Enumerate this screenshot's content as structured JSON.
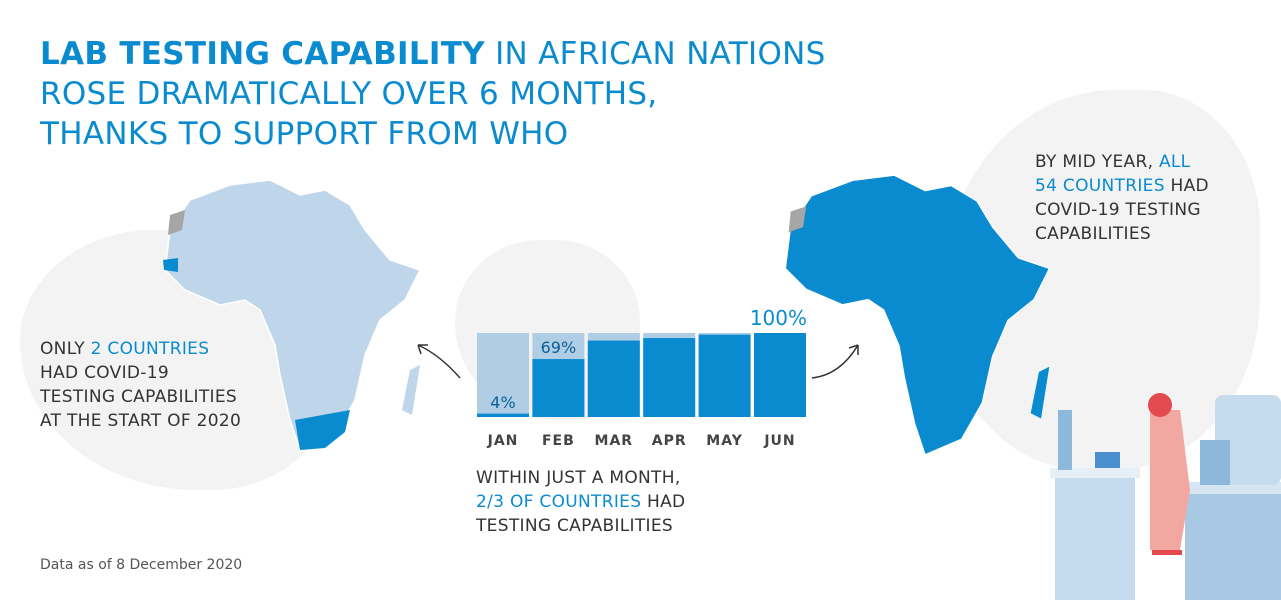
{
  "title": {
    "bold": "LAB TESTING CAPABILITY",
    "rest1": " IN AFRICAN NATIONS",
    "line2": "ROSE DRAMATICALLY OVER 6 MONTHS,",
    "line3": "THANKS TO SUPPORT FROM WHO"
  },
  "left_note": {
    "pre": "ONLY ",
    "hl": "2 COUNTRIES",
    "l2": "HAD COVID-19",
    "l3": "TESTING CAPABILITIES",
    "l4": "AT THE START OF 2020"
  },
  "right_note": {
    "pre": "BY MID YEAR, ",
    "hl1": "ALL",
    "hl2": "54 COUNTRIES",
    "post2": " HAD",
    "l3": "COVID-19 TESTING",
    "l4": "CAPABILITIES"
  },
  "bottom_note": {
    "l1": "WITHIN JUST A MONTH,",
    "hl": "2/3 OF COUNTRIES",
    "post": " HAD",
    "l3": "TESTING CAPABILITIES"
  },
  "footer": "Data as of 8 December 2020",
  "colors": {
    "accent": "#0a8bd0",
    "bar_bg": "#b0cde6",
    "map_light": "#bfd6ea",
    "grey": "#a6a6a6"
  },
  "chart_data": {
    "type": "bar",
    "categories": [
      "JAN",
      "FEB",
      "MAR",
      "APR",
      "MAY",
      "JUN"
    ],
    "values": [
      4,
      69,
      91,
      94,
      98,
      100
    ],
    "data_labels": [
      "4%",
      "69%",
      "",
      "",
      "",
      "100%"
    ],
    "unit": "%",
    "ylim": [
      0,
      100
    ],
    "grid": false
  }
}
